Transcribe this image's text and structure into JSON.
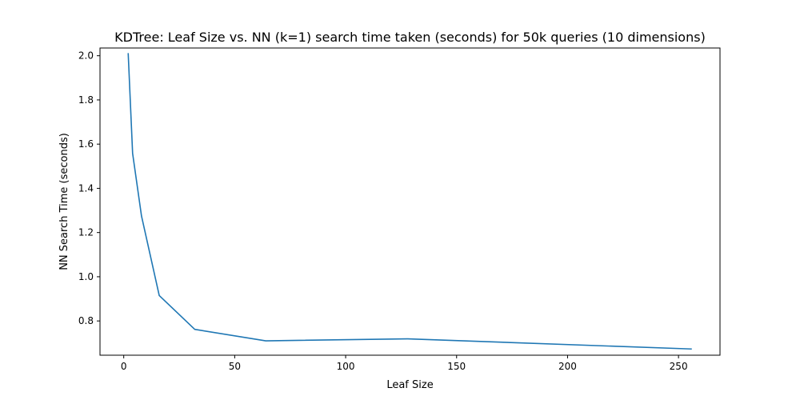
{
  "chart_data": {
    "type": "line",
    "title": "KDTree: Leaf Size vs. NN (k=1) search time taken (seconds) for 50k queries (10 dimensions)",
    "xlabel": "Leaf Size",
    "ylabel": "NN Search Time (seconds)",
    "xlim": [
      -10.7,
      268.7
    ],
    "ylim": [
      0.645,
      2.035
    ],
    "xticks": [
      0,
      50,
      100,
      150,
      200,
      250
    ],
    "yticks": [
      0.8,
      1.0,
      1.2,
      1.4,
      1.6,
      1.8,
      2.0
    ],
    "xtick_labels": [
      "0",
      "50",
      "100",
      "150",
      "200",
      "250"
    ],
    "ytick_labels": [
      "0.8",
      "1.0",
      "1.2",
      "1.4",
      "1.6",
      "1.8",
      "2.0"
    ],
    "grid": false,
    "line_color": "#1f77b4",
    "series": [
      {
        "x": [
          2,
          4,
          8,
          16,
          32,
          64,
          128,
          256
        ],
        "y": [
          2.012,
          1.558,
          1.275,
          0.915,
          0.762,
          0.71,
          0.719,
          0.673
        ]
      }
    ]
  }
}
